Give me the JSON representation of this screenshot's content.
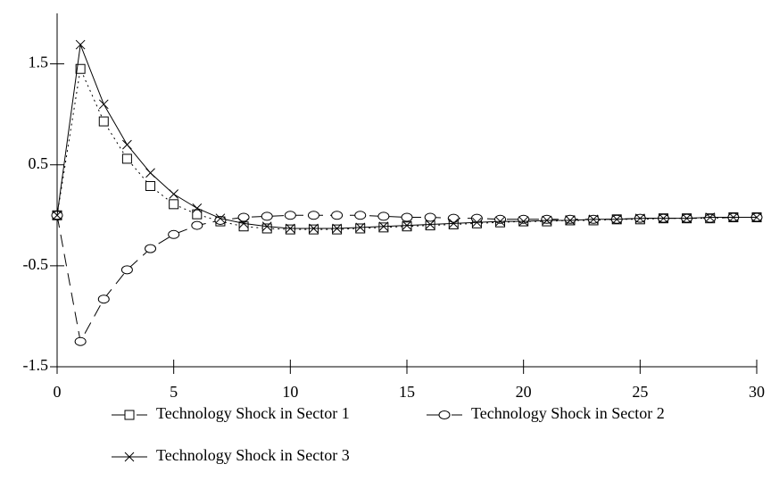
{
  "chart_data": {
    "type": "line",
    "x": [
      0,
      1,
      2,
      3,
      4,
      5,
      6,
      7,
      8,
      9,
      10,
      11,
      12,
      13,
      14,
      15,
      16,
      17,
      18,
      19,
      20,
      21,
      22,
      23,
      24,
      25,
      26,
      27,
      28,
      29,
      30
    ],
    "xlim": [
      0,
      30
    ],
    "xticks": [
      0,
      5,
      10,
      15,
      20,
      25,
      30
    ],
    "ylim": [
      -1.5,
      2
    ],
    "yticks": [
      -1.5,
      -0.5,
      0.5,
      1.5
    ],
    "series": [
      {
        "name": "Technology Shock in Sector 1",
        "color": "#000000",
        "marker": "square",
        "dash": "2 4",
        "values": [
          0,
          1.45,
          0.93,
          0.56,
          0.29,
          0.11,
          0.01,
          -0.06,
          -0.11,
          -0.13,
          -0.14,
          -0.14,
          -0.14,
          -0.13,
          -0.12,
          -0.11,
          -0.1,
          -0.09,
          -0.08,
          -0.07,
          -0.06,
          -0.06,
          -0.05,
          -0.05,
          -0.04,
          -0.04,
          -0.03,
          -0.03,
          -0.03,
          -0.02,
          -0.02
        ]
      },
      {
        "name": "Technology Shock in Sector 2",
        "color": "#000000",
        "marker": "circle",
        "dash": "14 8",
        "values": [
          0,
          -1.25,
          -0.83,
          -0.54,
          -0.33,
          -0.19,
          -0.1,
          -0.05,
          -0.02,
          -0.01,
          0,
          0,
          0,
          0,
          -0.01,
          -0.02,
          -0.02,
          -0.03,
          -0.03,
          -0.04,
          -0.04,
          -0.04,
          -0.04,
          -0.04,
          -0.04,
          -0.03,
          -0.03,
          -0.03,
          -0.03,
          -0.02,
          -0.02
        ]
      },
      {
        "name": "Technology Shock in Sector 3",
        "color": "#000000",
        "marker": "x",
        "dash": "none",
        "values": [
          0,
          1.69,
          1.1,
          0.7,
          0.42,
          0.21,
          0.07,
          -0.03,
          -0.08,
          -0.11,
          -0.13,
          -0.13,
          -0.13,
          -0.12,
          -0.11,
          -0.1,
          -0.09,
          -0.08,
          -0.07,
          -0.06,
          -0.06,
          -0.05,
          -0.05,
          -0.04,
          -0.04,
          -0.03,
          -0.03,
          -0.03,
          -0.02,
          -0.02,
          -0.02
        ]
      }
    ]
  }
}
